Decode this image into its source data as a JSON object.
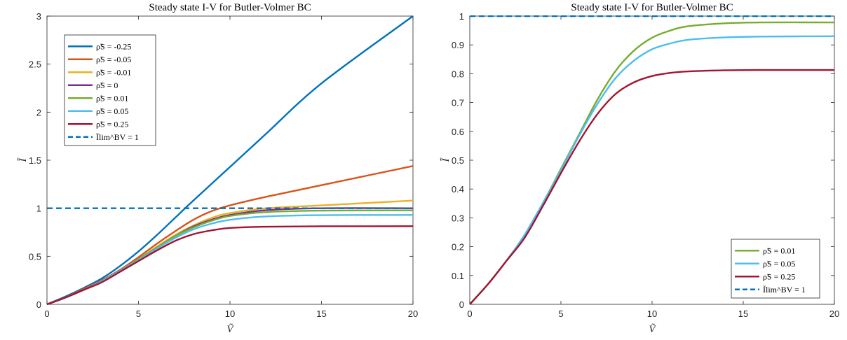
{
  "chart_data": [
    {
      "type": "line",
      "title": "Steady state I-V for Butler-Volmer BC",
      "xlabel": "Ṽ",
      "ylabel": "Ĩ",
      "xlim": [
        0,
        20
      ],
      "ylim": [
        0,
        3
      ],
      "xticks": [
        "0",
        "5",
        "10",
        "15",
        "20"
      ],
      "yticks": [
        "0",
        "0.5",
        "1",
        "1.5",
        "2",
        "2.5",
        "3"
      ],
      "legend_position": "top-left",
      "grid": false,
      "series": [
        {
          "name": "ρ̃S = -0.25",
          "color": "#0072BD",
          "dash": false,
          "x": [
            0,
            1,
            2,
            3,
            4,
            5,
            6,
            7,
            8,
            10,
            12,
            15,
            20
          ],
          "y": [
            0,
            0.08,
            0.17,
            0.27,
            0.4,
            0.55,
            0.72,
            0.9,
            1.08,
            1.43,
            1.78,
            2.3,
            3.0
          ]
        },
        {
          "name": "ρ̃S = -0.05",
          "color": "#D95319",
          "dash": false,
          "x": [
            0,
            1,
            2,
            3,
            4,
            5,
            6,
            7,
            8,
            9,
            10,
            12,
            15,
            20
          ],
          "y": [
            0,
            0.07,
            0.16,
            0.25,
            0.36,
            0.49,
            0.63,
            0.76,
            0.88,
            0.97,
            1.03,
            1.12,
            1.24,
            1.44
          ]
        },
        {
          "name": "ρ̃S = -0.01",
          "color": "#EDB120",
          "dash": false,
          "x": [
            0,
            1,
            2,
            3,
            4,
            5,
            6,
            7,
            8,
            9,
            10,
            12,
            15,
            20
          ],
          "y": [
            0,
            0.07,
            0.15,
            0.24,
            0.35,
            0.47,
            0.6,
            0.72,
            0.82,
            0.9,
            0.95,
            1.0,
            1.03,
            1.08
          ]
        },
        {
          "name": "ρ̃S = 0",
          "color": "#7E2F8E",
          "dash": false,
          "x": [
            0,
            1,
            2,
            3,
            4,
            5,
            6,
            7,
            8,
            9,
            10,
            12,
            15,
            20
          ],
          "y": [
            0,
            0.07,
            0.15,
            0.24,
            0.35,
            0.47,
            0.59,
            0.71,
            0.81,
            0.88,
            0.93,
            0.98,
            1.0,
            1.0
          ]
        },
        {
          "name": "ρ̃S = 0.01",
          "color": "#77AC30",
          "dash": false,
          "x": [
            0,
            1,
            2,
            3,
            4,
            5,
            6,
            7,
            8,
            9,
            10,
            12,
            15,
            20
          ],
          "y": [
            0,
            0.07,
            0.15,
            0.24,
            0.35,
            0.47,
            0.59,
            0.71,
            0.8,
            0.87,
            0.92,
            0.96,
            0.975,
            0.978
          ]
        },
        {
          "name": "ρ̃S = 0.05",
          "color": "#4DBEEE",
          "dash": false,
          "x": [
            0,
            1,
            2,
            3,
            4,
            5,
            6,
            7,
            8,
            9,
            10,
            12,
            15,
            20
          ],
          "y": [
            0,
            0.07,
            0.15,
            0.24,
            0.35,
            0.46,
            0.58,
            0.69,
            0.78,
            0.84,
            0.88,
            0.915,
            0.928,
            0.93
          ]
        },
        {
          "name": "ρ̃S = 0.25",
          "color": "#A2142F",
          "dash": false,
          "x": [
            0,
            1,
            2,
            3,
            4,
            5,
            6,
            7,
            8,
            9,
            10,
            12,
            15,
            20
          ],
          "y": [
            0,
            0.07,
            0.15,
            0.23,
            0.34,
            0.45,
            0.56,
            0.66,
            0.73,
            0.77,
            0.795,
            0.808,
            0.812,
            0.813
          ]
        },
        {
          "name": "Ĩlim^BV = 1",
          "color": "#0072BD",
          "dash": true,
          "x": [
            0,
            20
          ],
          "y": [
            1,
            1
          ]
        }
      ]
    },
    {
      "type": "line",
      "title": "Steady state I-V for Butler-Volmer BC",
      "xlabel": "Ṽ",
      "ylabel": "Ĩ",
      "xlim": [
        0,
        20
      ],
      "ylim": [
        0,
        1
      ],
      "xticks": [
        "0",
        "5",
        "10",
        "15",
        "20"
      ],
      "yticks": [
        "0",
        "0.1",
        "0.2",
        "0.3",
        "0.4",
        "0.5",
        "0.6",
        "0.7",
        "0.8",
        "0.9",
        "1"
      ],
      "legend_position": "bottom-right",
      "grid": false,
      "series": [
        {
          "name": "ρ̃S = 0.01",
          "color": "#77AC30",
          "dash": false,
          "x": [
            0,
            1,
            2,
            3,
            4,
            5,
            6,
            7,
            8,
            9,
            10,
            11,
            12,
            14,
            16,
            20
          ],
          "y": [
            0,
            0.07,
            0.15,
            0.24,
            0.35,
            0.47,
            0.59,
            0.71,
            0.81,
            0.88,
            0.925,
            0.95,
            0.965,
            0.975,
            0.978,
            0.978
          ]
        },
        {
          "name": "ρ̃S = 0.05",
          "color": "#4DBEEE",
          "dash": false,
          "x": [
            0,
            1,
            2,
            3,
            4,
            5,
            6,
            7,
            8,
            9,
            10,
            11,
            12,
            14,
            16,
            20
          ],
          "y": [
            0,
            0.07,
            0.15,
            0.24,
            0.35,
            0.465,
            0.585,
            0.695,
            0.785,
            0.845,
            0.885,
            0.905,
            0.918,
            0.926,
            0.929,
            0.93
          ]
        },
        {
          "name": "ρ̃S = 0.25",
          "color": "#A2142F",
          "dash": false,
          "x": [
            0,
            1,
            2,
            3,
            4,
            5,
            6,
            7,
            8,
            9,
            10,
            11,
            12,
            14,
            16,
            20
          ],
          "y": [
            0,
            0.07,
            0.15,
            0.23,
            0.34,
            0.455,
            0.565,
            0.66,
            0.73,
            0.77,
            0.792,
            0.803,
            0.808,
            0.812,
            0.813,
            0.813
          ]
        },
        {
          "name": "Ĩlim^BV = 1",
          "color": "#0072BD",
          "dash": true,
          "x": [
            0,
            20
          ],
          "y": [
            1,
            1
          ]
        }
      ]
    }
  ]
}
